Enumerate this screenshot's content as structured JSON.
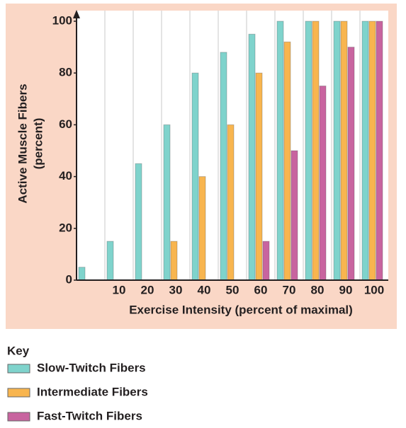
{
  "chart_data": {
    "type": "bar",
    "y_label_lines": [
      "Active Muscle Fibers",
      "(percent)"
    ],
    "x_label": "Exercise Intensity (percent of maximal)",
    "categories": [
      null,
      "10",
      "20",
      "30",
      "40",
      "50",
      "60",
      "70",
      "80",
      "90",
      "100"
    ],
    "series": [
      {
        "name": "Slow-Twitch Fibers",
        "color": "#7fd3cc",
        "values": [
          5,
          15,
          45,
          60,
          80,
          88,
          95,
          100,
          100,
          100,
          100
        ]
      },
      {
        "name": "Intermediate Fibers",
        "color": "#f8b54f",
        "values": [
          0,
          0,
          0,
          15,
          40,
          60,
          80,
          92,
          100,
          100,
          100
        ]
      },
      {
        "name": "Fast-Twitch Fibers",
        "color": "#c8649f",
        "values": [
          0,
          0,
          0,
          0,
          0,
          0,
          15,
          50,
          75,
          90,
          100
        ]
      }
    ],
    "ylim": [
      0,
      100
    ],
    "yticks": [
      0,
      20,
      40,
      60,
      80,
      100
    ],
    "legend_title": "Key"
  }
}
